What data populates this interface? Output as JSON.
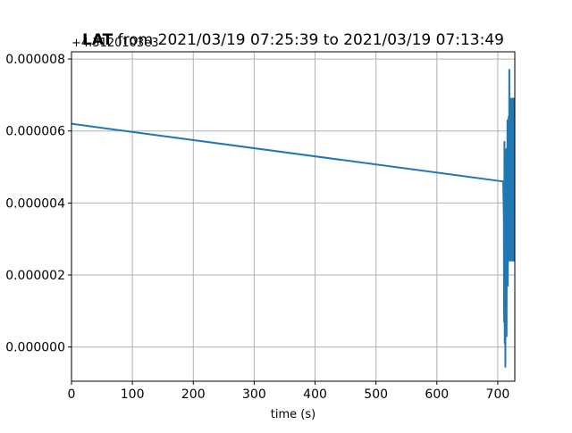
{
  "chart_data": {
    "type": "line",
    "title_bold": "LAT",
    "title_rest": " from 2021/03/19 07:25:39 to 2021/03/19 07:13:49",
    "xlabel": "time (s)",
    "ylabel": "",
    "offset_text": "+4.3120103e3",
    "xlim": [
      0,
      728
    ],
    "ylim": [
      -9.5e-07,
      8.2e-06
    ],
    "x_ticks": [
      0,
      100,
      200,
      300,
      400,
      500,
      600,
      700
    ],
    "x_tick_labels": [
      "0",
      "100",
      "200",
      "300",
      "400",
      "500",
      "600",
      "700"
    ],
    "y_ticks": [
      0.0,
      2e-06,
      4e-06,
      6e-06,
      8e-06
    ],
    "y_tick_labels": [
      "0.000000",
      "0.000002",
      "0.000004",
      "0.000006",
      "0.000008"
    ],
    "grid": true,
    "series_color": "#1f77b4",
    "series": [
      {
        "x": [
          0,
          708,
          709,
          710,
          710.5,
          711,
          711.5,
          712,
          712.5,
          713,
          713.5,
          714,
          714.5,
          715,
          715.5,
          716,
          716.5,
          717,
          717.5,
          718,
          718.5,
          719,
          719.5,
          720,
          720.5,
          721,
          721.5,
          722,
          722.5,
          723,
          723.5,
          724,
          724.5,
          725,
          725.5,
          726,
          726.5,
          727,
          727.5,
          728
        ],
        "y": [
          6.2e-06,
          4.6e-06,
          4.6e-06,
          3.6e-06,
          7e-07,
          5.7e-06,
          1e-07,
          4.9e-06,
          -5.5e-07,
          4.1e-06,
          1.1e-06,
          5.5e-06,
          3e-07,
          4.6e-06,
          2e-06,
          6.3e-06,
          1.7e-06,
          5.2e-06,
          2.4e-06,
          6.4e-06,
          2.6e-06,
          7.7e-06,
          2.4e-06,
          6.4e-06,
          3e-06,
          5.8e-06,
          2.4e-06,
          6.9e-06,
          2.7e-06,
          6.4e-06,
          3.1e-06,
          6.2e-06,
          2.4e-06,
          6.9e-06,
          2.9e-06,
          6.3e-06,
          2.4e-06,
          6.9e-06,
          2.4e-06,
          6.5e-06
        ]
      }
    ]
  }
}
